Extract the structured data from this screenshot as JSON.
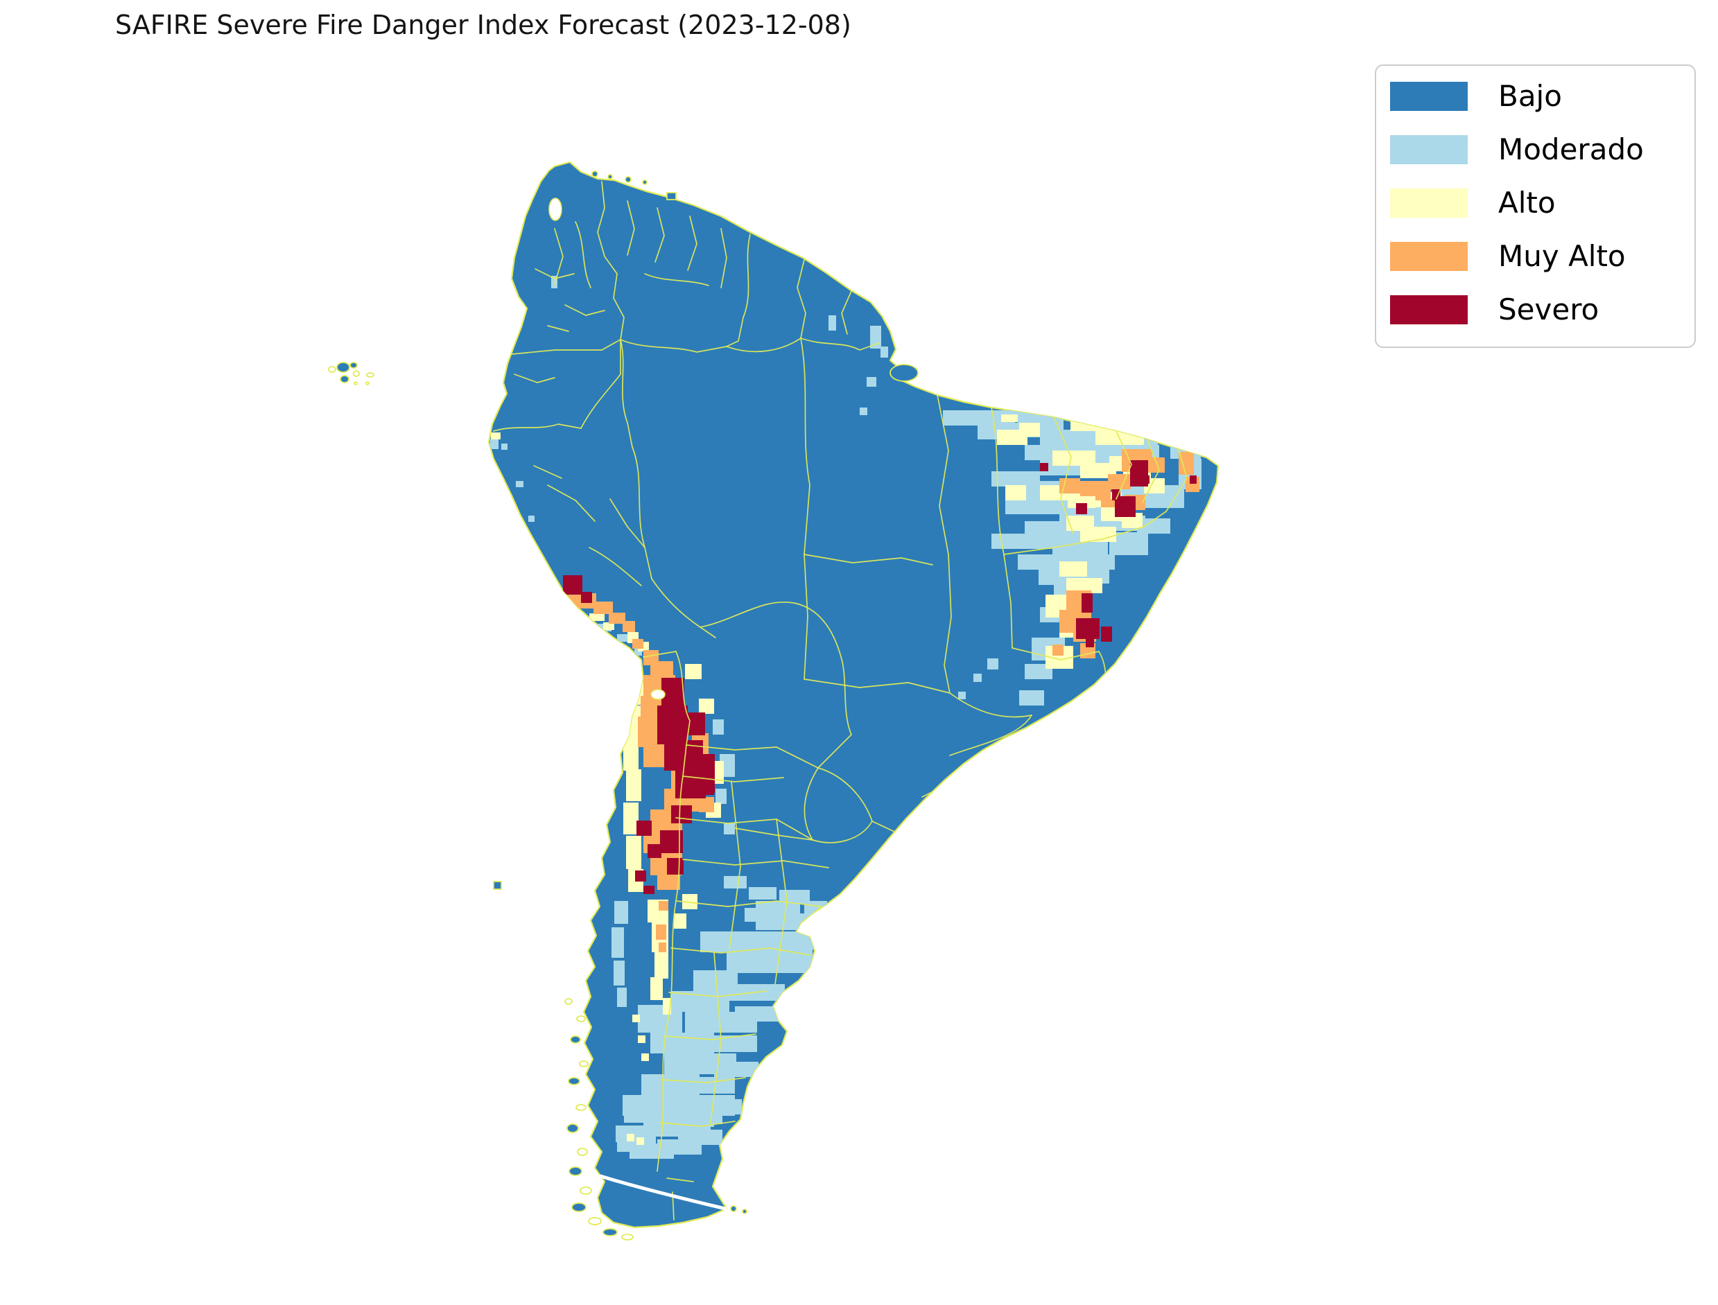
{
  "title": "SAFIRE Severe Fire Danger Index Forecast (2023-12-08)",
  "colors": {
    "bajo": "#2d7cb8",
    "moderado": "#abd9e9",
    "alto": "#ffffbf",
    "muy_alto": "#fdae61",
    "severo": "#a2052c",
    "boundary": "#e2ea55",
    "background": "#ffffff",
    "legend_border": "#cccccc",
    "text": "#000000"
  },
  "legend": {
    "items": [
      {
        "key": "bajo",
        "label": "Bajo"
      },
      {
        "key": "moderado",
        "label": "Moderado"
      },
      {
        "key": "alto",
        "label": "Alto"
      },
      {
        "key": "muy_alto",
        "label": "Muy Alto"
      },
      {
        "key": "severo",
        "label": "Severo"
      }
    ]
  },
  "chart_data": {
    "type": "heatmap",
    "title": "SAFIRE Severe Fire Danger Index Forecast (2023-12-08)",
    "region": "South America",
    "categories": [
      "Bajo",
      "Moderado",
      "Alto",
      "Muy Alto",
      "Severo"
    ],
    "category_colors": [
      "#2d7cb8",
      "#abd9e9",
      "#ffffbf",
      "#fdae61",
      "#a2052c"
    ],
    "legend_position": "upper right",
    "grid": false,
    "notable_areas": [
      "Severe and Very High danger cluster over central Chile and adjacent western Argentina",
      "Severe/Very High pockets along the Peruvian coast",
      "Moderate-to-Severe mosaic across northeastern Brazil with severe spots in interior Bahia and near the east tip",
      "High/Very High coastal strip in eastern Bahia with severe core",
      "Moderate patches across Patagonian Argentina and Tierra del Fuego",
      "Remainder of the continent classified Low (Bajo)"
    ]
  },
  "map": {
    "region": "South America",
    "cells": [
      [
        1455,
        576,
        90,
        22,
        "m"
      ],
      [
        1544,
        580,
        132,
        33,
        "m"
      ],
      [
        1468,
        598,
        66,
        33,
        "m"
      ],
      [
        1500,
        620,
        170,
        22,
        "m"
      ],
      [
        1478,
        642,
        84,
        22,
        "m"
      ],
      [
        1562,
        642,
        110,
        33,
        "m"
      ],
      [
        1500,
        664,
        100,
        22,
        "m"
      ],
      [
        1430,
        680,
        70,
        22,
        "m"
      ],
      [
        1468,
        694,
        92,
        33,
        "m"
      ],
      [
        1610,
        700,
        66,
        33,
        "m"
      ],
      [
        1450,
        720,
        120,
        22,
        "m"
      ],
      [
        1528,
        730,
        92,
        22,
        "m"
      ],
      [
        1478,
        752,
        112,
        33,
        "m"
      ],
      [
        1590,
        744,
        62,
        22,
        "m"
      ],
      [
        1430,
        770,
        88,
        22,
        "m"
      ],
      [
        1518,
        780,
        80,
        22,
        "m"
      ],
      [
        1468,
        800,
        100,
        22,
        "m"
      ],
      [
        1552,
        800,
        56,
        22,
        "m"
      ],
      [
        1498,
        822,
        70,
        22,
        "m"
      ],
      [
        1360,
        592,
        104,
        22,
        "m"
      ],
      [
        1410,
        612,
        62,
        22,
        "m"
      ],
      [
        1458,
        610,
        44,
        11,
        "m"
      ],
      [
        1310,
        534,
        16,
        14,
        "m"
      ],
      [
        1688,
        640,
        44,
        22,
        "m"
      ],
      [
        1700,
        662,
        33,
        44,
        "m"
      ],
      [
        1668,
        700,
        40,
        33,
        "m"
      ],
      [
        1640,
        748,
        48,
        22,
        "m"
      ],
      [
        1600,
        768,
        56,
        33,
        "m"
      ],
      [
        1556,
        820,
        44,
        22,
        "m"
      ],
      [
        1520,
        844,
        56,
        33,
        "m"
      ],
      [
        1500,
        876,
        56,
        22,
        "m"
      ],
      [
        1488,
        920,
        48,
        33,
        "m"
      ],
      [
        1478,
        958,
        40,
        22,
        "m"
      ],
      [
        1470,
        996,
        36,
        22,
        "m"
      ],
      [
        1195,
        455,
        11,
        22,
        "m"
      ],
      [
        1255,
        470,
        16,
        33,
        "m"
      ],
      [
        1270,
        500,
        11,
        16,
        "m"
      ],
      [
        1250,
        544,
        14,
        14,
        "m"
      ],
      [
        1240,
        588,
        11,
        11,
        "m"
      ],
      [
        795,
        398,
        9,
        18,
        "m"
      ],
      [
        1424,
        950,
        16,
        16,
        "m"
      ],
      [
        1404,
        972,
        12,
        12,
        "m"
      ],
      [
        1382,
        998,
        11,
        11,
        "m"
      ],
      [
        860,
        900,
        22,
        11,
        "m"
      ],
      [
        890,
        915,
        16,
        11,
        "m"
      ],
      [
        915,
        935,
        11,
        11,
        "m"
      ],
      [
        707,
        634,
        12,
        14,
        "m"
      ],
      [
        723,
        640,
        9,
        9,
        "m"
      ],
      [
        744,
        694,
        11,
        9,
        "m"
      ],
      [
        762,
        744,
        9,
        9,
        "m"
      ],
      [
        886,
        1300,
        20,
        33,
        "m"
      ],
      [
        882,
        1338,
        18,
        44,
        "m"
      ],
      [
        885,
        1386,
        16,
        36,
        "m"
      ],
      [
        890,
        1425,
        14,
        28,
        "m"
      ],
      [
        1038,
        1088,
        22,
        33,
        "m"
      ],
      [
        1032,
        1138,
        16,
        22,
        "m"
      ],
      [
        1028,
        1038,
        16,
        22,
        "m"
      ],
      [
        1044,
        1188,
        16,
        16,
        "m"
      ],
      [
        1010,
        1344,
        160,
        30,
        "m"
      ],
      [
        1048,
        1374,
        124,
        30,
        "m"
      ],
      [
        1090,
        1318,
        80,
        24,
        "m"
      ],
      [
        1000,
        1400,
        64,
        30,
        "m"
      ],
      [
        968,
        1430,
        84,
        30,
        "m"
      ],
      [
        1040,
        1420,
        92,
        24,
        "m"
      ],
      [
        920,
        1450,
        64,
        40,
        "m"
      ],
      [
        988,
        1460,
        104,
        30,
        "m"
      ],
      [
        1060,
        1452,
        64,
        22,
        "m"
      ],
      [
        938,
        1490,
        92,
        30,
        "m"
      ],
      [
        1008,
        1494,
        84,
        24,
        "m"
      ],
      [
        958,
        1520,
        104,
        30,
        "m"
      ],
      [
        1030,
        1532,
        64,
        22,
        "m"
      ],
      [
        925,
        1550,
        84,
        30,
        "m"
      ],
      [
        988,
        1554,
        72,
        24,
        "m"
      ],
      [
        948,
        1580,
        112,
        30,
        "m"
      ],
      [
        1018,
        1586,
        52,
        22,
        "m"
      ],
      [
        900,
        1590,
        56,
        30,
        "m"
      ],
      [
        933,
        1610,
        92,
        24,
        "m"
      ],
      [
        978,
        1630,
        64,
        22,
        "m"
      ],
      [
        888,
        1624,
        48,
        24,
        "m"
      ],
      [
        908,
        1650,
        64,
        22,
        "m"
      ],
      [
        1090,
        1300,
        64,
        22,
        "m"
      ],
      [
        1128,
        1320,
        52,
        22,
        "m"
      ],
      [
        1166,
        1348,
        40,
        22,
        "m"
      ],
      [
        1128,
        1358,
        44,
        22,
        "m"
      ],
      [
        1074,
        1310,
        44,
        20,
        "m"
      ],
      [
        1124,
        1284,
        44,
        20,
        "m"
      ],
      [
        1160,
        1300,
        33,
        20,
        "m"
      ],
      [
        1080,
        1280,
        40,
        18,
        "m"
      ],
      [
        1044,
        1264,
        33,
        18,
        "m"
      ],
      [
        898,
        1580,
        92,
        30,
        "m"
      ],
      [
        958,
        1586,
        72,
        40,
        "m"
      ],
      [
        928,
        1610,
        84,
        30,
        "m"
      ],
      [
        998,
        1600,
        44,
        22,
        "m"
      ],
      [
        890,
        1640,
        56,
        22,
        "m"
      ],
      [
        948,
        1644,
        64,
        22,
        "m"
      ],
      [
        1544,
        600,
        62,
        22,
        "a"
      ],
      [
        1580,
        620,
        70,
        22,
        "a"
      ],
      [
        1518,
        650,
        62,
        22,
        "a"
      ],
      [
        1558,
        668,
        52,
        22,
        "a"
      ],
      [
        1600,
        658,
        44,
        22,
        "a"
      ],
      [
        1500,
        700,
        52,
        22,
        "a"
      ],
      [
        1540,
        700,
        40,
        33,
        "a"
      ],
      [
        1620,
        680,
        40,
        22,
        "a"
      ],
      [
        1650,
        690,
        30,
        22,
        "a"
      ],
      [
        1578,
        710,
        40,
        22,
        "a"
      ],
      [
        1538,
        744,
        40,
        22,
        "a"
      ],
      [
        1558,
        760,
        52,
        22,
        "a"
      ],
      [
        1618,
        740,
        30,
        22,
        "a"
      ],
      [
        1450,
        700,
        30,
        22,
        "a"
      ],
      [
        1438,
        620,
        44,
        22,
        "a"
      ],
      [
        1528,
        810,
        40,
        22,
        "a"
      ],
      [
        1538,
        834,
        52,
        22,
        "a"
      ],
      [
        1508,
        858,
        52,
        33,
        "a"
      ],
      [
        1528,
        898,
        40,
        22,
        "a"
      ],
      [
        1508,
        932,
        40,
        33,
        "a"
      ],
      [
        1588,
        730,
        30,
        22,
        "a"
      ],
      [
        1444,
        598,
        24,
        11,
        "a"
      ],
      [
        1470,
        610,
        30,
        20,
        "a"
      ],
      [
        810,
        860,
        16,
        16,
        "a"
      ],
      [
        850,
        885,
        22,
        11,
        "a"
      ],
      [
        870,
        898,
        16,
        11,
        "a"
      ],
      [
        905,
        912,
        16,
        16,
        "a"
      ],
      [
        920,
        926,
        16,
        14,
        "a"
      ],
      [
        934,
        988,
        12,
        22,
        "a"
      ],
      [
        928,
        1010,
        16,
        16,
        "a"
      ],
      [
        708,
        624,
        14,
        10,
        "a"
      ],
      [
        906,
        984,
        22,
        33,
        "a"
      ],
      [
        903,
        1018,
        22,
        44,
        "a"
      ],
      [
        899,
        1060,
        22,
        52,
        "a"
      ],
      [
        903,
        1110,
        22,
        46,
        "a"
      ],
      [
        899,
        1158,
        22,
        46,
        "a"
      ],
      [
        903,
        1206,
        22,
        48,
        "a"
      ],
      [
        906,
        1254,
        22,
        33,
        "a"
      ],
      [
        934,
        1298,
        30,
        33,
        "a"
      ],
      [
        940,
        1330,
        24,
        44,
        "a"
      ],
      [
        944,
        1372,
        20,
        40,
        "a"
      ],
      [
        938,
        1410,
        18,
        33,
        "a"
      ],
      [
        956,
        1440,
        12,
        24,
        "a"
      ],
      [
        920,
        1494,
        11,
        11,
        "a"
      ],
      [
        925,
        1520,
        11,
        11,
        "a"
      ],
      [
        988,
        958,
        24,
        22,
        "a"
      ],
      [
        1008,
        1008,
        22,
        22,
        "a"
      ],
      [
        1028,
        1098,
        16,
        33,
        "a"
      ],
      [
        1018,
        1158,
        22,
        22,
        "a"
      ],
      [
        984,
        1290,
        22,
        22,
        "a"
      ],
      [
        972,
        1318,
        18,
        22,
        "a"
      ],
      [
        904,
        1636,
        11,
        11,
        "a"
      ],
      [
        918,
        1641,
        11,
        11,
        "a"
      ],
      [
        912,
        1464,
        11,
        11,
        "a"
      ],
      [
        115,
        1126,
        9,
        6,
        "a"
      ],
      [
        756,
        1272,
        10,
        5,
        "a"
      ],
      [
        1618,
        648,
        44,
        33,
        "o"
      ],
      [
        1654,
        660,
        26,
        22,
        "o"
      ],
      [
        1598,
        684,
        33,
        22,
        "o"
      ],
      [
        1558,
        694,
        44,
        22,
        "o"
      ],
      [
        1528,
        690,
        30,
        22,
        "o"
      ],
      [
        1580,
        700,
        22,
        22,
        "o"
      ],
      [
        1622,
        714,
        30,
        22,
        "o"
      ],
      [
        1588,
        720,
        22,
        12,
        "o"
      ],
      [
        1700,
        652,
        22,
        33,
        "o"
      ],
      [
        1710,
        688,
        20,
        22,
        "o"
      ],
      [
        1538,
        852,
        36,
        44,
        "o"
      ],
      [
        1528,
        880,
        44,
        33,
        "o"
      ],
      [
        1548,
        904,
        33,
        22,
        "o"
      ],
      [
        1558,
        928,
        22,
        22,
        "o"
      ],
      [
        1518,
        930,
        16,
        16,
        "o"
      ],
      [
        820,
        856,
        40,
        22,
        "o"
      ],
      [
        856,
        868,
        28,
        18,
        "o"
      ],
      [
        878,
        884,
        24,
        16,
        "o"
      ],
      [
        898,
        896,
        18,
        16,
        "o"
      ],
      [
        912,
        922,
        16,
        14,
        "o"
      ],
      [
        928,
        938,
        22,
        22,
        "o"
      ],
      [
        938,
        962,
        18,
        33,
        "o"
      ],
      [
        942,
        998,
        16,
        24,
        "o"
      ],
      [
        938,
        954,
        33,
        22,
        "o"
      ],
      [
        928,
        974,
        46,
        33,
        "o"
      ],
      [
        924,
        1004,
        56,
        33,
        "o"
      ],
      [
        920,
        1034,
        46,
        44,
        "o"
      ],
      [
        928,
        1074,
        36,
        33,
        "o"
      ],
      [
        958,
        1138,
        52,
        33,
        "o"
      ],
      [
        938,
        1168,
        46,
        33,
        "o"
      ],
      [
        928,
        1198,
        56,
        33,
        "o"
      ],
      [
        938,
        1230,
        46,
        33,
        "o"
      ],
      [
        948,
        1262,
        33,
        22,
        "o"
      ],
      [
        988,
        1098,
        33,
        44,
        "o"
      ],
      [
        998,
        1058,
        24,
        33,
        "o"
      ],
      [
        1008,
        1150,
        22,
        22,
        "o"
      ],
      [
        968,
        1108,
        33,
        33,
        "o"
      ],
      [
        946,
        1334,
        15,
        22,
        "o"
      ],
      [
        950,
        1360,
        11,
        14,
        "o"
      ],
      [
        950,
        1300,
        14,
        14,
        "o"
      ],
      [
        1630,
        664,
        26,
        38,
        "s"
      ],
      [
        1646,
        686,
        12,
        12,
        "s"
      ],
      [
        1604,
        706,
        12,
        16,
        "s"
      ],
      [
        1608,
        716,
        30,
        30,
        "s"
      ],
      [
        1552,
        726,
        16,
        16,
        "s"
      ],
      [
        1500,
        668,
        12,
        12,
        "s"
      ],
      [
        1716,
        686,
        10,
        12,
        "s"
      ],
      [
        1560,
        856,
        16,
        28,
        "s"
      ],
      [
        1552,
        892,
        34,
        30,
        "s"
      ],
      [
        1588,
        904,
        16,
        22,
        "s"
      ],
      [
        1566,
        922,
        12,
        12,
        "s"
      ],
      [
        812,
        830,
        28,
        28,
        "s"
      ],
      [
        838,
        854,
        16,
        16,
        "s"
      ],
      [
        954,
        978,
        33,
        44,
        "s"
      ],
      [
        948,
        1018,
        44,
        56,
        "s"
      ],
      [
        958,
        1068,
        56,
        44,
        "s"
      ],
      [
        984,
        1028,
        33,
        33,
        "s"
      ],
      [
        998,
        1088,
        33,
        56,
        "s"
      ],
      [
        974,
        1108,
        44,
        44,
        "s"
      ],
      [
        952,
        1198,
        33,
        33,
        "s"
      ],
      [
        962,
        1238,
        24,
        24,
        "s"
      ],
      [
        918,
        1184,
        22,
        22,
        "s"
      ],
      [
        916,
        1256,
        16,
        16,
        "s"
      ],
      [
        928,
        1278,
        16,
        12,
        "s"
      ],
      [
        1008,
        1114,
        22,
        33,
        "s"
      ],
      [
        934,
        1218,
        20,
        20,
        "s"
      ],
      [
        968,
        1162,
        30,
        26,
        "s"
      ]
    ]
  }
}
